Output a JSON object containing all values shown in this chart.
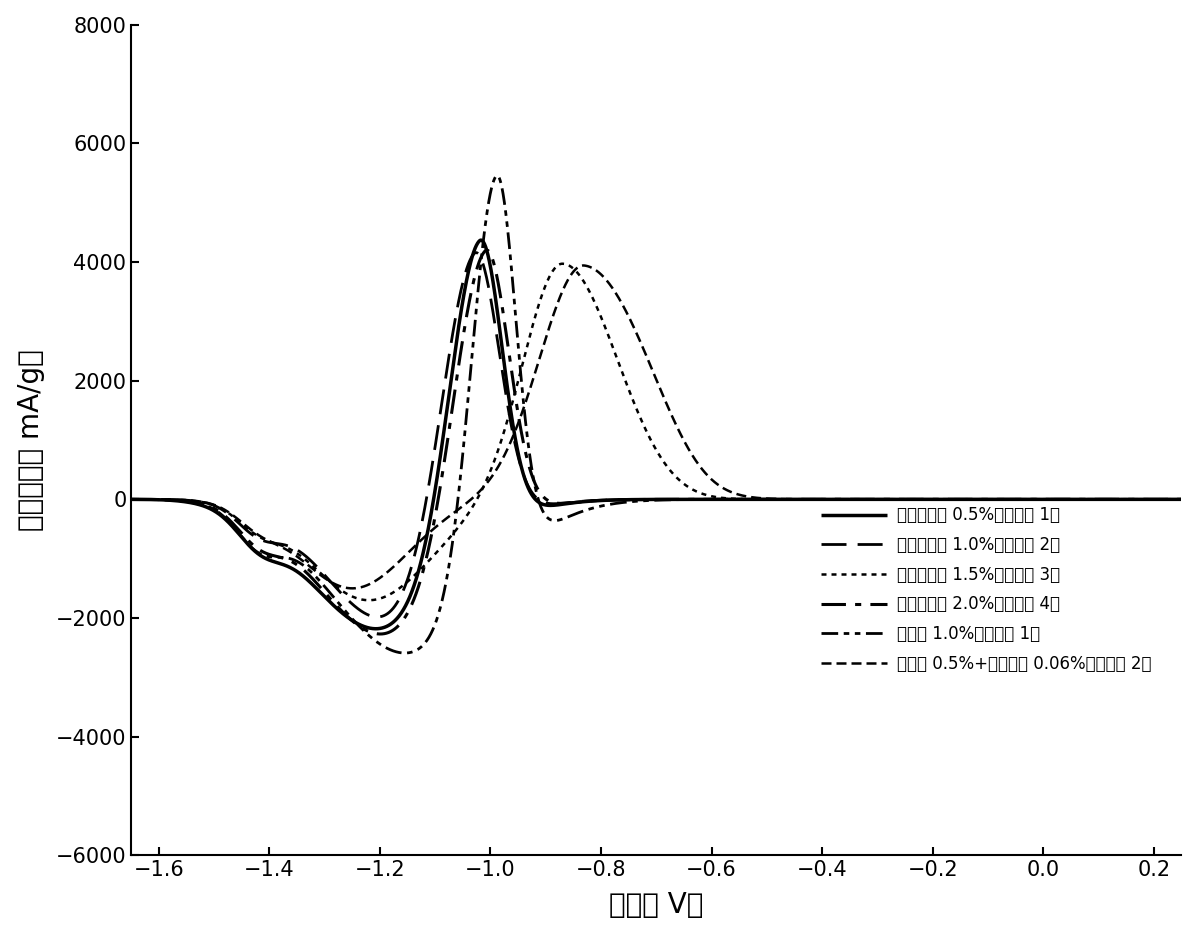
{
  "xlabel": "电位（ V）",
  "ylabel": "电流密度（ mA/g）",
  "xlim": [
    -1.65,
    0.25
  ],
  "ylim": [
    -6000,
    8000
  ],
  "xticks": [
    -1.6,
    -1.4,
    -1.2,
    -1.0,
    -0.8,
    -0.6,
    -0.4,
    -0.2,
    0.0,
    0.2
  ],
  "yticks": [
    -6000,
    -4000,
    -2000,
    0,
    2000,
    4000,
    6000,
    8000
  ],
  "legend_entries": [
    "？？？？？ 0.5%（？？？ 1）",
    "？？？？？ 1.0%（？？？ 2）",
    "？？？？？ 1.5%（？？？ 3）",
    "？？？？？ 2.0%（？？？ 4）",
    "？？？ 1.0%（？？？ 1）",
    "？？？ 0.5%+？？？？ 0.06%（？？？ 2）"
  ],
  "bg_color": "#ffffff"
}
